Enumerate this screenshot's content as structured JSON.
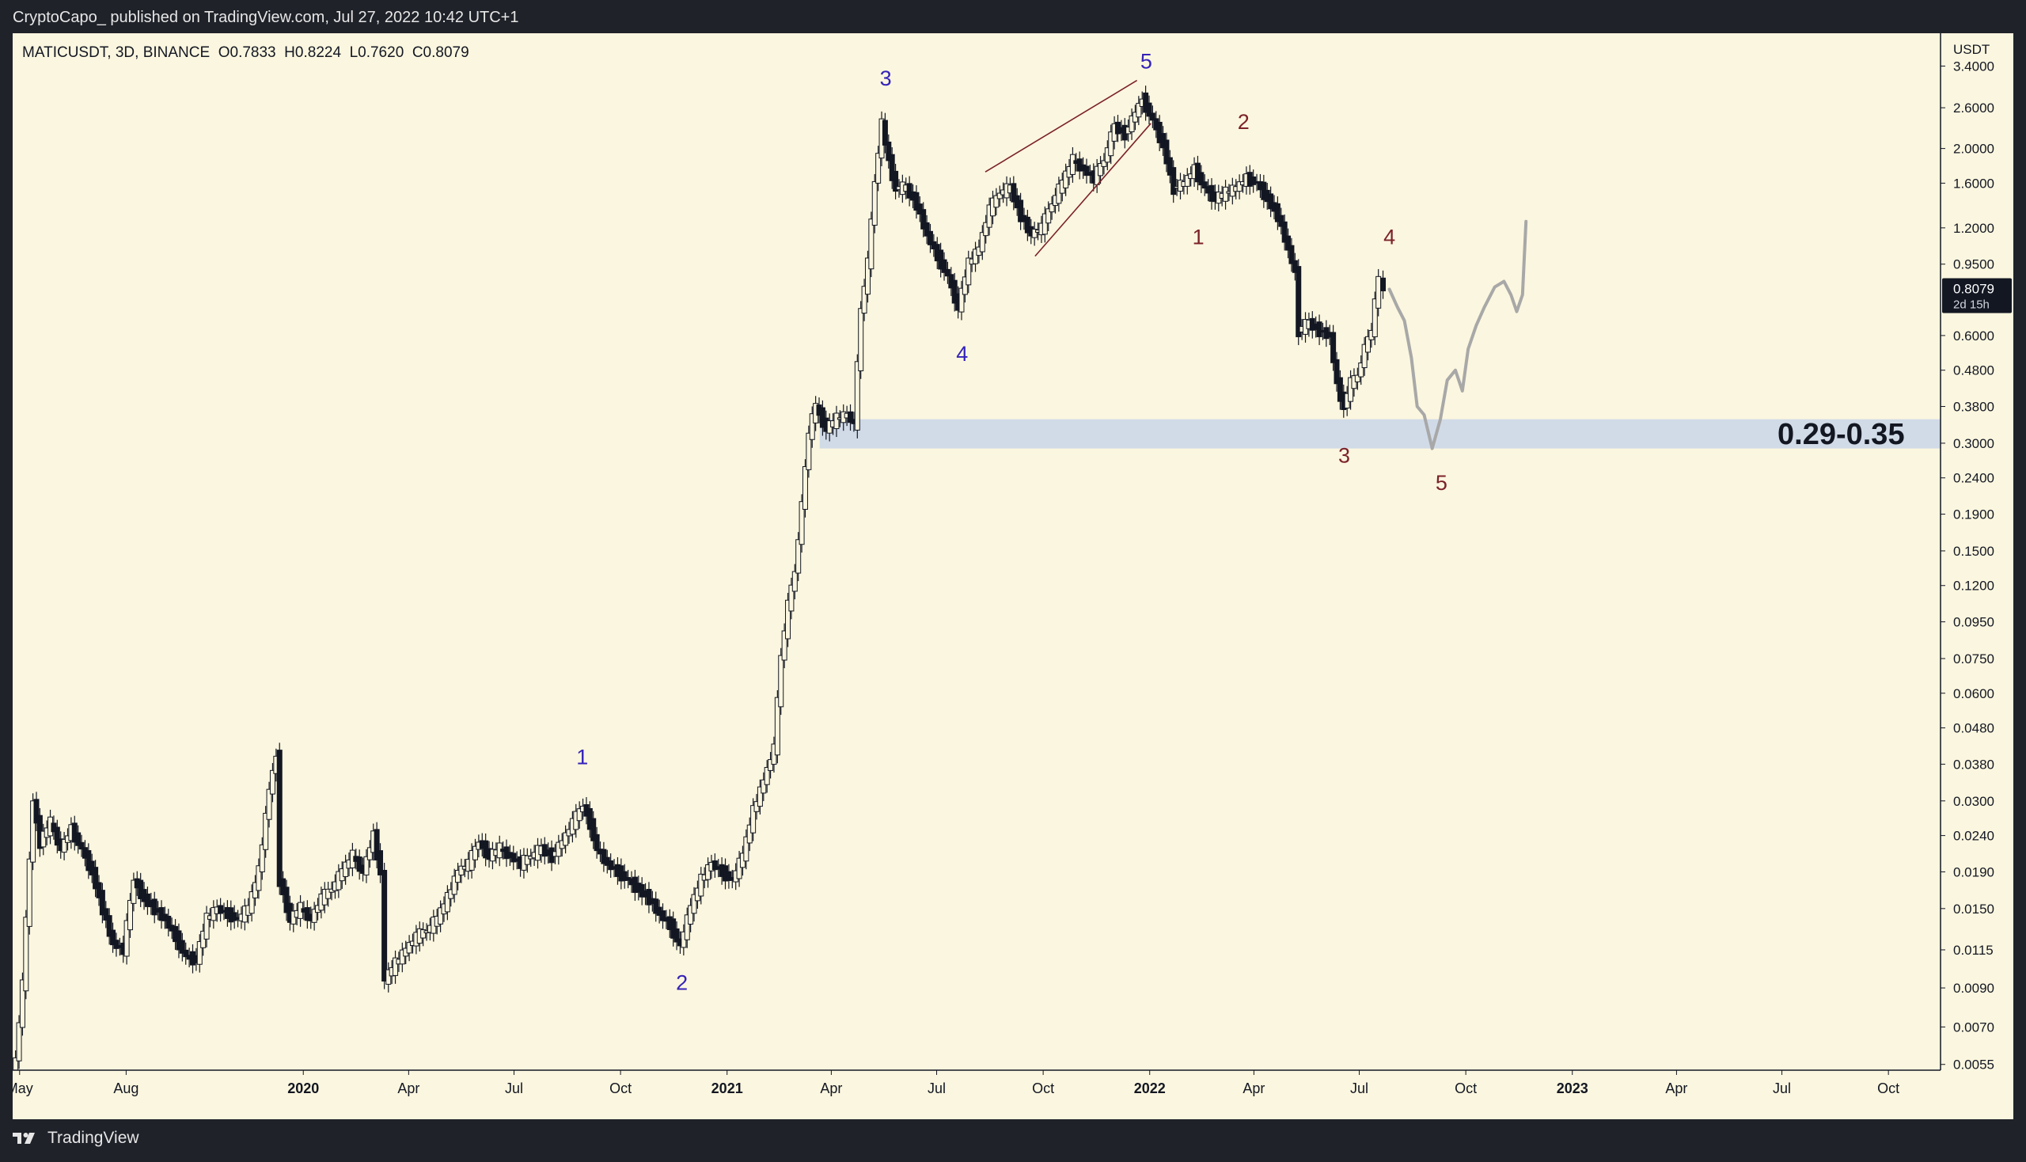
{
  "publish_line": "CryptoCapo_ published on TradingView.com, Jul 27, 2022 10:42 UTC+1",
  "symbol_line": "MATICUSDT, 3D, BINANCE  O0.7833  H0.8224  L0.7620  C0.8079",
  "brand": "TradingView",
  "price_axis": {
    "currency": "USDT",
    "scale": "log",
    "range": [
      0.0053,
      4.2
    ],
    "ticks": [
      {
        "value": 3.4,
        "label": "3.4000"
      },
      {
        "value": 2.6,
        "label": "2.6000"
      },
      {
        "value": 2.0,
        "label": "2.0000"
      },
      {
        "value": 1.6,
        "label": "1.6000"
      },
      {
        "value": 1.2,
        "label": "1.2000"
      },
      {
        "value": 0.95,
        "label": "0.9500"
      },
      {
        "value": 0.6,
        "label": "0.6000"
      },
      {
        "value": 0.48,
        "label": "0.4800"
      },
      {
        "value": 0.38,
        "label": "0.3800"
      },
      {
        "value": 0.3,
        "label": "0.3000"
      },
      {
        "value": 0.24,
        "label": "0.2400"
      },
      {
        "value": 0.19,
        "label": "0.1900"
      },
      {
        "value": 0.15,
        "label": "0.1500"
      },
      {
        "value": 0.12,
        "label": "0.1200"
      },
      {
        "value": 0.095,
        "label": "0.0950"
      },
      {
        "value": 0.075,
        "label": "0.0750"
      },
      {
        "value": 0.06,
        "label": "0.0600"
      },
      {
        "value": 0.048,
        "label": "0.0480"
      },
      {
        "value": 0.038,
        "label": "0.0380"
      },
      {
        "value": 0.03,
        "label": "0.0300"
      },
      {
        "value": 0.024,
        "label": "0.0240"
      },
      {
        "value": 0.019,
        "label": "0.0190"
      },
      {
        "value": 0.015,
        "label": "0.0150"
      },
      {
        "value": 0.0115,
        "label": "0.0115"
      },
      {
        "value": 0.009,
        "label": "0.0090"
      },
      {
        "value": 0.007,
        "label": "0.0070"
      },
      {
        "value": 0.0055,
        "label": "0.0055"
      }
    ],
    "current_price": {
      "value": 0.8079,
      "label": "0.8079",
      "countdown": "2d 15h"
    }
  },
  "time_axis": {
    "range": [
      "2019-04-25",
      "2023-11-15"
    ],
    "ticks": [
      {
        "date": "2019-05-01",
        "label": "May",
        "bold": false
      },
      {
        "date": "2019-08-01",
        "label": "Aug",
        "bold": false
      },
      {
        "date": "2020-01-01",
        "label": "2020",
        "bold": true
      },
      {
        "date": "2020-04-01",
        "label": "Apr",
        "bold": false
      },
      {
        "date": "2020-07-01",
        "label": "Jul",
        "bold": false
      },
      {
        "date": "2020-10-01",
        "label": "Oct",
        "bold": false
      },
      {
        "date": "2021-01-01",
        "label": "2021",
        "bold": true
      },
      {
        "date": "2021-04-01",
        "label": "Apr",
        "bold": false
      },
      {
        "date": "2021-07-01",
        "label": "Jul",
        "bold": false
      },
      {
        "date": "2021-10-01",
        "label": "Oct",
        "bold": false
      },
      {
        "date": "2022-01-01",
        "label": "2022",
        "bold": true
      },
      {
        "date": "2022-04-01",
        "label": "Apr",
        "bold": false
      },
      {
        "date": "2022-07-01",
        "label": "Jul",
        "bold": false
      },
      {
        "date": "2022-10-01",
        "label": "Oct",
        "bold": false
      },
      {
        "date": "2023-01-01",
        "label": "2023",
        "bold": true
      },
      {
        "date": "2023-04-01",
        "label": "Apr",
        "bold": false
      },
      {
        "date": "2023-07-01",
        "label": "Jul",
        "bold": false
      },
      {
        "date": "2023-10-01",
        "label": "Oct",
        "bold": false
      }
    ]
  },
  "support_zone": {
    "low": 0.29,
    "high": 0.35,
    "start": "2021-03-22",
    "label": "0.29-0.35",
    "color": "#c9d6ea"
  },
  "wave_labels": [
    {
      "text": "1",
      "date": "2020-08-29",
      "price": 0.038,
      "color": "#3523b8"
    },
    {
      "text": "2",
      "date": "2020-11-23",
      "price": 0.0089,
      "color": "#3523b8"
    },
    {
      "text": "3",
      "date": "2021-05-18",
      "price": 3.0,
      "color": "#3523b8"
    },
    {
      "text": "4",
      "date": "2021-07-23",
      "price": 0.51,
      "color": "#3523b8"
    },
    {
      "text": "5",
      "date": "2021-12-29",
      "price": 3.35,
      "color": "#3523b8"
    },
    {
      "text": "1",
      "date": "2022-02-12",
      "price": 1.08,
      "color": "#7b2229"
    },
    {
      "text": "2",
      "date": "2022-03-23",
      "price": 2.27,
      "color": "#7b2229"
    },
    {
      "text": "3",
      "date": "2022-06-18",
      "price": 0.265,
      "color": "#7b2229"
    },
    {
      "text": "4",
      "date": "2022-07-27",
      "price": 1.08,
      "color": "#7b2229"
    },
    {
      "text": "5",
      "date": "2022-09-10",
      "price": 0.222,
      "color": "#7b2229"
    }
  ],
  "wedge_lines": [
    {
      "from": {
        "date": "2021-08-12",
        "price": 1.72
      },
      "to": {
        "date": "2021-12-21",
        "price": 3.1
      }
    },
    {
      "from": {
        "date": "2021-09-24",
        "price": 1.0
      },
      "to": {
        "date": "2022-01-02",
        "price": 2.35
      }
    }
  ],
  "projection_path": [
    {
      "date": "2022-07-27",
      "price": 0.8079
    },
    {
      "date": "2022-08-03",
      "price": 0.72
    },
    {
      "date": "2022-08-09",
      "price": 0.66
    },
    {
      "date": "2022-08-15",
      "price": 0.52
    },
    {
      "date": "2022-08-20",
      "price": 0.38
    },
    {
      "date": "2022-08-26",
      "price": 0.36
    },
    {
      "date": "2022-09-02",
      "price": 0.29
    },
    {
      "date": "2022-09-09",
      "price": 0.35
    },
    {
      "date": "2022-09-15",
      "price": 0.45
    },
    {
      "date": "2022-09-22",
      "price": 0.48
    },
    {
      "date": "2022-09-28",
      "price": 0.42
    },
    {
      "date": "2022-10-03",
      "price": 0.55
    },
    {
      "date": "2022-10-10",
      "price": 0.64
    },
    {
      "date": "2022-10-17",
      "price": 0.72
    },
    {
      "date": "2022-10-26",
      "price": 0.82
    },
    {
      "date": "2022-11-03",
      "price": 0.85
    },
    {
      "date": "2022-11-09",
      "price": 0.78
    },
    {
      "date": "2022-11-14",
      "price": 0.7
    },
    {
      "date": "2022-11-19",
      "price": 0.78
    },
    {
      "date": "2022-11-22",
      "price": 1.25
    }
  ],
  "colors": {
    "background": "#fbf6df",
    "candle": "#131722",
    "projection": "#a8a8a8",
    "frame": "#1f2229",
    "axis_text": "#131722"
  },
  "chart_data": {
    "type": "line",
    "title": "MATICUSDT, 3D, BINANCE",
    "series": [
      {
        "name": "MATICUSDT",
        "points": [
          {
            "x": "2019-04-26",
            "y": 0.0044
          },
          {
            "x": "2019-05-05",
            "y": 0.0092
          },
          {
            "x": "2019-05-14",
            "y": 0.03
          },
          {
            "x": "2019-05-20",
            "y": 0.023
          },
          {
            "x": "2019-05-29",
            "y": 0.026
          },
          {
            "x": "2019-06-07",
            "y": 0.022
          },
          {
            "x": "2019-06-16",
            "y": 0.025
          },
          {
            "x": "2019-06-25",
            "y": 0.022
          },
          {
            "x": "2019-07-04",
            "y": 0.019
          },
          {
            "x": "2019-07-13",
            "y": 0.015
          },
          {
            "x": "2019-07-22",
            "y": 0.012
          },
          {
            "x": "2019-07-31",
            "y": 0.0115
          },
          {
            "x": "2019-08-09",
            "y": 0.018
          },
          {
            "x": "2019-08-18",
            "y": 0.016
          },
          {
            "x": "2019-08-27",
            "y": 0.015
          },
          {
            "x": "2019-09-05",
            "y": 0.014
          },
          {
            "x": "2019-09-14",
            "y": 0.0125
          },
          {
            "x": "2019-09-23",
            "y": 0.011
          },
          {
            "x": "2019-10-02",
            "y": 0.0108
          },
          {
            "x": "2019-10-11",
            "y": 0.014
          },
          {
            "x": "2019-10-20",
            "y": 0.015
          },
          {
            "x": "2019-10-29",
            "y": 0.0145
          },
          {
            "x": "2019-11-07",
            "y": 0.014
          },
          {
            "x": "2019-11-16",
            "y": 0.015
          },
          {
            "x": "2019-11-25",
            "y": 0.019
          },
          {
            "x": "2019-12-04",
            "y": 0.032
          },
          {
            "x": "2019-12-10",
            "y": 0.04
          },
          {
            "x": "2019-12-13",
            "y": 0.018
          },
          {
            "x": "2019-12-22",
            "y": 0.014
          },
          {
            "x": "2019-12-31",
            "y": 0.015
          },
          {
            "x": "2020-01-09",
            "y": 0.014
          },
          {
            "x": "2020-01-18",
            "y": 0.016
          },
          {
            "x": "2020-01-27",
            "y": 0.017
          },
          {
            "x": "2020-02-05",
            "y": 0.019
          },
          {
            "x": "2020-02-14",
            "y": 0.021
          },
          {
            "x": "2020-02-23",
            "y": 0.019
          },
          {
            "x": "2020-03-03",
            "y": 0.024
          },
          {
            "x": "2020-03-09",
            "y": 0.019
          },
          {
            "x": "2020-03-13",
            "y": 0.0095
          },
          {
            "x": "2020-03-22",
            "y": 0.0105
          },
          {
            "x": "2020-03-31",
            "y": 0.0115
          },
          {
            "x": "2020-04-09",
            "y": 0.0125
          },
          {
            "x": "2020-04-18",
            "y": 0.013
          },
          {
            "x": "2020-04-27",
            "y": 0.014
          },
          {
            "x": "2020-05-06",
            "y": 0.016
          },
          {
            "x": "2020-05-15",
            "y": 0.019
          },
          {
            "x": "2020-05-24",
            "y": 0.02
          },
          {
            "x": "2020-06-02",
            "y": 0.023
          },
          {
            "x": "2020-06-11",
            "y": 0.021
          },
          {
            "x": "2020-06-20",
            "y": 0.022
          },
          {
            "x": "2020-06-29",
            "y": 0.021
          },
          {
            "x": "2020-07-08",
            "y": 0.02
          },
          {
            "x": "2020-07-17",
            "y": 0.021
          },
          {
            "x": "2020-07-26",
            "y": 0.022
          },
          {
            "x": "2020-08-04",
            "y": 0.021
          },
          {
            "x": "2020-08-13",
            "y": 0.023
          },
          {
            "x": "2020-08-22",
            "y": 0.026
          },
          {
            "x": "2020-08-31",
            "y": 0.029
          },
          {
            "x": "2020-09-06",
            "y": 0.026
          },
          {
            "x": "2020-09-12",
            "y": 0.022
          },
          {
            "x": "2020-09-21",
            "y": 0.02
          },
          {
            "x": "2020-09-30",
            "y": 0.019
          },
          {
            "x": "2020-10-09",
            "y": 0.018
          },
          {
            "x": "2020-10-18",
            "y": 0.017
          },
          {
            "x": "2020-10-27",
            "y": 0.016
          },
          {
            "x": "2020-11-05",
            "y": 0.0145
          },
          {
            "x": "2020-11-14",
            "y": 0.0135
          },
          {
            "x": "2020-11-23",
            "y": 0.0118
          },
          {
            "x": "2020-12-02",
            "y": 0.015
          },
          {
            "x": "2020-12-11",
            "y": 0.018
          },
          {
            "x": "2020-12-20",
            "y": 0.02
          },
          {
            "x": "2020-12-29",
            "y": 0.019
          },
          {
            "x": "2021-01-07",
            "y": 0.018
          },
          {
            "x": "2021-01-16",
            "y": 0.021
          },
          {
            "x": "2021-01-25",
            "y": 0.028
          },
          {
            "x": "2021-02-03",
            "y": 0.034
          },
          {
            "x": "2021-02-12",
            "y": 0.042
          },
          {
            "x": "2021-02-18",
            "y": 0.075
          },
          {
            "x": "2021-02-24",
            "y": 0.105
          },
          {
            "x": "2021-03-02",
            "y": 0.13
          },
          {
            "x": "2021-03-08",
            "y": 0.2
          },
          {
            "x": "2021-03-14",
            "y": 0.32
          },
          {
            "x": "2021-03-20",
            "y": 0.38
          },
          {
            "x": "2021-03-29",
            "y": 0.33
          },
          {
            "x": "2021-04-07",
            "y": 0.35
          },
          {
            "x": "2021-04-16",
            "y": 0.36
          },
          {
            "x": "2021-04-22",
            "y": 0.34
          },
          {
            "x": "2021-04-28",
            "y": 0.7
          },
          {
            "x": "2021-05-04",
            "y": 0.95
          },
          {
            "x": "2021-05-10",
            "y": 1.6
          },
          {
            "x": "2021-05-16",
            "y": 2.35
          },
          {
            "x": "2021-05-22",
            "y": 1.85
          },
          {
            "x": "2021-05-28",
            "y": 1.55
          },
          {
            "x": "2021-06-06",
            "y": 1.55
          },
          {
            "x": "2021-06-15",
            "y": 1.4
          },
          {
            "x": "2021-06-24",
            "y": 1.15
          },
          {
            "x": "2021-07-03",
            "y": 1.0
          },
          {
            "x": "2021-07-12",
            "y": 0.88
          },
          {
            "x": "2021-07-21",
            "y": 0.72
          },
          {
            "x": "2021-07-30",
            "y": 0.95
          },
          {
            "x": "2021-08-08",
            "y": 1.05
          },
          {
            "x": "2021-08-17",
            "y": 1.35
          },
          {
            "x": "2021-08-26",
            "y": 1.5
          },
          {
            "x": "2021-09-04",
            "y": 1.55
          },
          {
            "x": "2021-09-13",
            "y": 1.3
          },
          {
            "x": "2021-09-22",
            "y": 1.15
          },
          {
            "x": "2021-10-01",
            "y": 1.2
          },
          {
            "x": "2021-10-10",
            "y": 1.4
          },
          {
            "x": "2021-10-19",
            "y": 1.6
          },
          {
            "x": "2021-10-28",
            "y": 1.85
          },
          {
            "x": "2021-11-06",
            "y": 1.75
          },
          {
            "x": "2021-11-15",
            "y": 1.65
          },
          {
            "x": "2021-11-24",
            "y": 1.85
          },
          {
            "x": "2021-12-03",
            "y": 2.3
          },
          {
            "x": "2021-12-12",
            "y": 2.2
          },
          {
            "x": "2021-12-21",
            "y": 2.5
          },
          {
            "x": "2021-12-27",
            "y": 2.75
          },
          {
            "x": "2022-01-05",
            "y": 2.4
          },
          {
            "x": "2022-01-14",
            "y": 2.05
          },
          {
            "x": "2022-01-23",
            "y": 1.55
          },
          {
            "x": "2022-02-01",
            "y": 1.6
          },
          {
            "x": "2022-02-10",
            "y": 1.75
          },
          {
            "x": "2022-02-19",
            "y": 1.55
          },
          {
            "x": "2022-02-28",
            "y": 1.45
          },
          {
            "x": "2022-03-09",
            "y": 1.5
          },
          {
            "x": "2022-03-18",
            "y": 1.55
          },
          {
            "x": "2022-03-27",
            "y": 1.65
          },
          {
            "x": "2022-04-05",
            "y": 1.6
          },
          {
            "x": "2022-04-14",
            "y": 1.45
          },
          {
            "x": "2022-04-23",
            "y": 1.3
          },
          {
            "x": "2022-05-02",
            "y": 1.05
          },
          {
            "x": "2022-05-08",
            "y": 0.9
          },
          {
            "x": "2022-05-11",
            "y": 0.62
          },
          {
            "x": "2022-05-20",
            "y": 0.65
          },
          {
            "x": "2022-05-29",
            "y": 0.62
          },
          {
            "x": "2022-06-07",
            "y": 0.6
          },
          {
            "x": "2022-06-13",
            "y": 0.44
          },
          {
            "x": "2022-06-19",
            "y": 0.38
          },
          {
            "x": "2022-06-25",
            "y": 0.44
          },
          {
            "x": "2022-07-01",
            "y": 0.46
          },
          {
            "x": "2022-07-07",
            "y": 0.55
          },
          {
            "x": "2022-07-13",
            "y": 0.62
          },
          {
            "x": "2022-07-19",
            "y": 0.86
          },
          {
            "x": "2022-07-24",
            "y": 0.8079
          }
        ]
      }
    ],
    "xlabel": "",
    "ylabel": "USDT",
    "yscale": "log",
    "ylim": [
      0.0053,
      4.2
    ],
    "xlim": [
      "2019-04-25",
      "2023-11-15"
    ],
    "grid": false,
    "legend": "none"
  }
}
